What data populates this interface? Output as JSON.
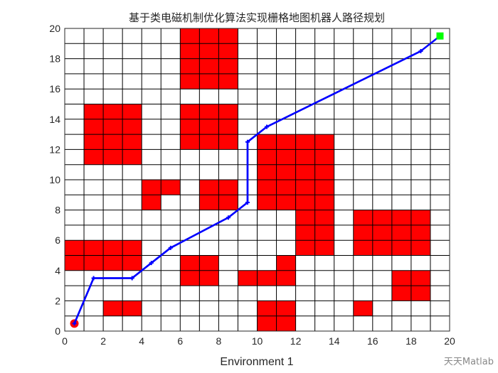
{
  "chart_data": {
    "type": "grid-map",
    "title": "基于类电磁机制优化算法实现栅格地图机器人路径规划",
    "xlabel": "Environment 1",
    "ylabel": "",
    "xlim": [
      0,
      20
    ],
    "ylim": [
      0,
      20
    ],
    "xticks": [
      "0",
      "2",
      "4",
      "6",
      "8",
      "10",
      "12",
      "14",
      "16",
      "18",
      "20"
    ],
    "yticks": [
      "0",
      "2",
      "4",
      "6",
      "8",
      "10",
      "12",
      "14",
      "16",
      "18",
      "20"
    ],
    "grid": true,
    "obstacle_color": "#ff0000",
    "path_color": "#0000ff",
    "start_color": "#ff0000",
    "goal_color": "#00ff00",
    "obstacle_cells": [
      [
        6,
        16
      ],
      [
        7,
        16
      ],
      [
        8,
        16
      ],
      [
        6,
        17
      ],
      [
        7,
        17
      ],
      [
        8,
        17
      ],
      [
        6,
        18
      ],
      [
        7,
        18
      ],
      [
        8,
        18
      ],
      [
        6,
        19
      ],
      [
        7,
        19
      ],
      [
        8,
        19
      ],
      [
        1,
        11
      ],
      [
        2,
        11
      ],
      [
        3,
        11
      ],
      [
        1,
        12
      ],
      [
        2,
        12
      ],
      [
        3,
        12
      ],
      [
        1,
        13
      ],
      [
        2,
        13
      ],
      [
        3,
        13
      ],
      [
        1,
        14
      ],
      [
        2,
        14
      ],
      [
        3,
        14
      ],
      [
        6,
        12
      ],
      [
        7,
        12
      ],
      [
        8,
        12
      ],
      [
        6,
        13
      ],
      [
        7,
        13
      ],
      [
        8,
        13
      ],
      [
        6,
        14
      ],
      [
        7,
        14
      ],
      [
        8,
        14
      ],
      [
        10,
        8
      ],
      [
        11,
        8
      ],
      [
        12,
        8
      ],
      [
        13,
        8
      ],
      [
        10,
        9
      ],
      [
        11,
        9
      ],
      [
        12,
        9
      ],
      [
        13,
        9
      ],
      [
        10,
        10
      ],
      [
        11,
        10
      ],
      [
        12,
        10
      ],
      [
        13,
        10
      ],
      [
        10,
        11
      ],
      [
        11,
        11
      ],
      [
        12,
        11
      ],
      [
        13,
        11
      ],
      [
        10,
        12
      ],
      [
        11,
        12
      ],
      [
        12,
        12
      ],
      [
        13,
        12
      ],
      [
        12,
        5
      ],
      [
        13,
        5
      ],
      [
        12,
        6
      ],
      [
        13,
        6
      ],
      [
        12,
        7
      ],
      [
        13,
        7
      ],
      [
        15,
        5
      ],
      [
        16,
        5
      ],
      [
        17,
        5
      ],
      [
        18,
        5
      ],
      [
        15,
        6
      ],
      [
        16,
        6
      ],
      [
        17,
        6
      ],
      [
        18,
        6
      ],
      [
        15,
        7
      ],
      [
        16,
        7
      ],
      [
        17,
        7
      ],
      [
        18,
        7
      ],
      [
        4,
        9
      ],
      [
        5,
        9
      ],
      [
        4,
        8
      ],
      [
        7,
        8
      ],
      [
        8,
        8
      ],
      [
        7,
        9
      ],
      [
        8,
        9
      ],
      [
        0,
        4
      ],
      [
        1,
        4
      ],
      [
        2,
        4
      ],
      [
        3,
        4
      ],
      [
        0,
        5
      ],
      [
        1,
        5
      ],
      [
        2,
        5
      ],
      [
        3,
        5
      ],
      [
        6,
        3
      ],
      [
        7,
        3
      ],
      [
        6,
        4
      ],
      [
        7,
        4
      ],
      [
        9,
        3
      ],
      [
        10,
        3
      ],
      [
        11,
        3
      ],
      [
        11,
        4
      ],
      [
        17,
        2
      ],
      [
        18,
        2
      ],
      [
        17,
        3
      ],
      [
        18,
        3
      ],
      [
        2,
        1
      ],
      [
        3,
        1
      ],
      [
        10,
        0
      ],
      [
        11,
        0
      ],
      [
        10,
        1
      ],
      [
        11,
        1
      ],
      [
        15,
        1
      ]
    ],
    "path": [
      [
        0.5,
        0.5
      ],
      [
        1.5,
        3.5
      ],
      [
        3.5,
        3.5
      ],
      [
        4.5,
        4.5
      ],
      [
        5.5,
        5.5
      ],
      [
        8.5,
        7.5
      ],
      [
        9.5,
        8.5
      ],
      [
        9.5,
        12.5
      ],
      [
        10.5,
        13.5
      ],
      [
        18.5,
        18.5
      ],
      [
        19.5,
        19.5
      ]
    ],
    "start": [
      0.5,
      0.5
    ],
    "goal": [
      19.5,
      19.5
    ]
  },
  "watermark": "天天Matlab"
}
